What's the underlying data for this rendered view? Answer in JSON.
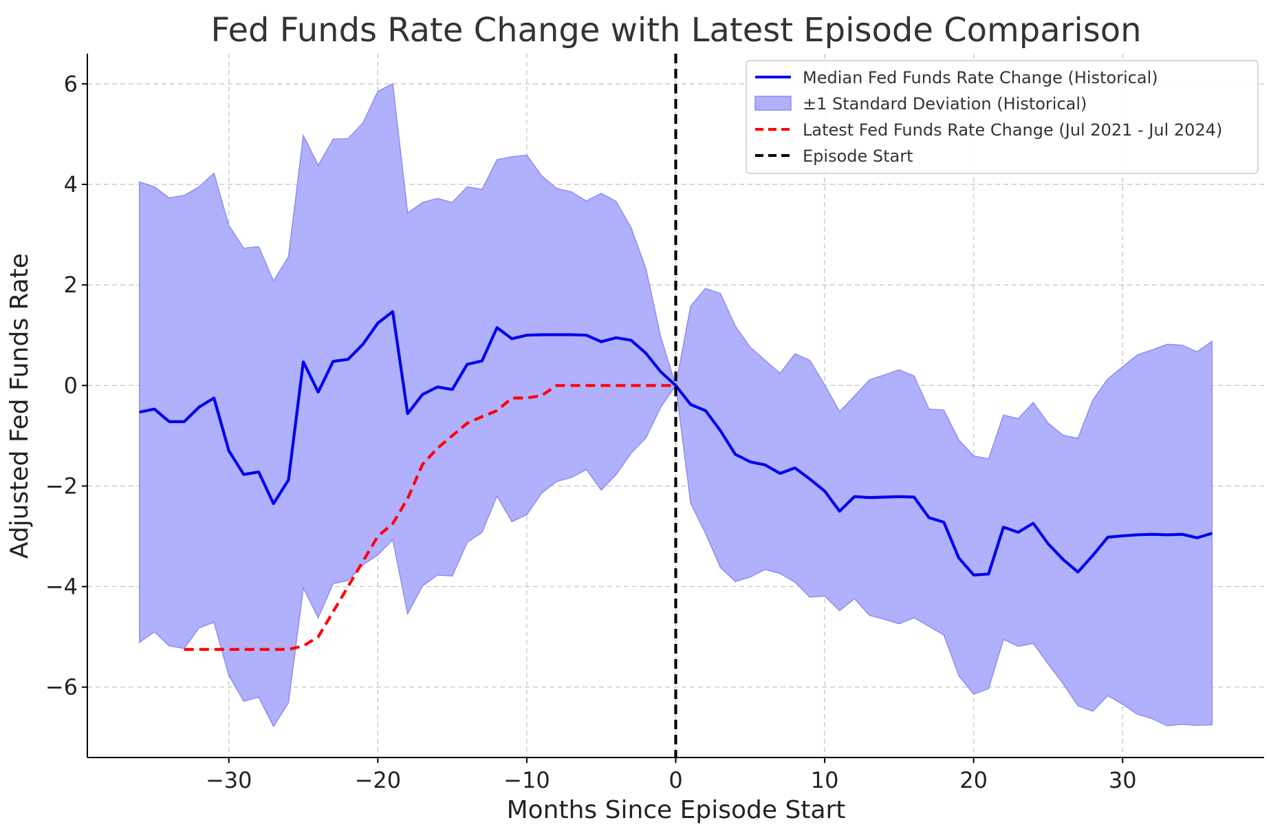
{
  "chart_data": {
    "type": "line",
    "title": "Fed Funds Rate Change with Latest Episode Comparison",
    "xlabel": "Months Since Episode Start",
    "ylabel": "Adjusted Fed Funds Rate",
    "xlim": [
      -39.5,
      39.5
    ],
    "ylim": [
      -7.4,
      6.6
    ],
    "xticks": [
      -30,
      -20,
      -10,
      0,
      10,
      20,
      30
    ],
    "xtick_labels": [
      "−30",
      "−20",
      "−10",
      "0",
      "10",
      "20",
      "30"
    ],
    "yticks": [
      -6,
      -4,
      -2,
      0,
      2,
      4,
      6
    ],
    "ytick_labels": [
      "−6",
      "−4",
      "−2",
      "0",
      "2",
      "4",
      "6"
    ],
    "grid": true,
    "legend_position": "top-right",
    "colors": {
      "median": "#0000ee",
      "band": "#b0b0fc",
      "band_edge": "#8c8cf2",
      "latest": "#ff0000",
      "episode_start": "#000000"
    },
    "series": [
      {
        "name": "Median Fed Funds Rate Change (Historical)",
        "style": "solid",
        "x": [
          -36,
          -35,
          -34,
          -33,
          -32,
          -31,
          -30,
          -29,
          -28,
          -27,
          -26,
          -25,
          -24,
          -23,
          -22,
          -21,
          -20,
          -19,
          -18,
          -17,
          -16,
          -15,
          -14,
          -13,
          -12,
          -11,
          -10,
          -9,
          -8,
          -7,
          -6,
          -5,
          -4,
          -3,
          -2,
          -1,
          0,
          1,
          2,
          3,
          4,
          5,
          6,
          7,
          8,
          9,
          10,
          11,
          12,
          13,
          14,
          15,
          16,
          17,
          18,
          19,
          20,
          21,
          22,
          23,
          24,
          25,
          26,
          27,
          28,
          29,
          30,
          31,
          32,
          33,
          34,
          35,
          36
        ],
        "y": [
          -0.53,
          -0.47,
          -0.72,
          -0.72,
          -0.43,
          -0.25,
          -1.3,
          -1.77,
          -1.72,
          -2.35,
          -1.88,
          0.47,
          -0.13,
          0.48,
          0.52,
          0.82,
          1.24,
          1.47,
          -0.56,
          -0.18,
          -0.03,
          -0.08,
          0.42,
          0.49,
          1.15,
          0.93,
          1.0,
          1.01,
          1.01,
          1.01,
          1.0,
          0.87,
          0.95,
          0.9,
          0.64,
          0.27,
          0.0,
          -0.38,
          -0.5,
          -0.9,
          -1.37,
          -1.52,
          -1.58,
          -1.75,
          -1.64,
          -1.86,
          -2.1,
          -2.5,
          -2.21,
          -2.23,
          -2.22,
          -2.21,
          -2.22,
          -2.63,
          -2.72,
          -3.43,
          -3.77,
          -3.75,
          -2.82,
          -2.92,
          -2.74,
          -3.15,
          -3.46,
          -3.71,
          -3.38,
          -3.02,
          -2.99,
          -2.97,
          -2.96,
          -2.97,
          -2.96,
          -3.03,
          -2.94
        ]
      },
      {
        "name": "±1 Standard Deviation (Historical)",
        "style": "band",
        "x": [
          -36,
          -35,
          -34,
          -33,
          -32,
          -31,
          -30,
          -29,
          -28,
          -27,
          -26,
          -25,
          -24,
          -23,
          -22,
          -21,
          -20,
          -19,
          -18,
          -17,
          -16,
          -15,
          -14,
          -13,
          -12,
          -11,
          -10,
          -9,
          -8,
          -7,
          -6,
          -5,
          -4,
          -3,
          -2,
          -1,
          0,
          1,
          2,
          3,
          4,
          5,
          6,
          7,
          8,
          9,
          10,
          11,
          12,
          13,
          14,
          15,
          16,
          17,
          18,
          19,
          20,
          21,
          22,
          23,
          24,
          25,
          26,
          27,
          28,
          29,
          30,
          31,
          32,
          33,
          34,
          35,
          36
        ],
        "upper": [
          4.05,
          3.95,
          3.73,
          3.78,
          3.95,
          4.22,
          3.18,
          2.73,
          2.76,
          2.08,
          2.56,
          4.97,
          4.38,
          4.9,
          4.91,
          5.22,
          5.85,
          6.0,
          3.43,
          3.64,
          3.72,
          3.64,
          3.95,
          3.9,
          4.49,
          4.55,
          4.58,
          4.17,
          3.92,
          3.85,
          3.67,
          3.82,
          3.66,
          3.14,
          2.32,
          0.96,
          0.0,
          1.58,
          1.93,
          1.83,
          1.18,
          0.76,
          0.5,
          0.24,
          0.63,
          0.5,
          0.01,
          -0.52,
          -0.21,
          0.11,
          0.21,
          0.31,
          0.19,
          -0.47,
          -0.49,
          -1.08,
          -1.4,
          -1.46,
          -0.59,
          -0.66,
          -0.34,
          -0.75,
          -0.99,
          -1.05,
          -0.29,
          0.13,
          0.37,
          0.61,
          0.71,
          0.82,
          0.8,
          0.67,
          0.88
        ],
        "lower": [
          -5.11,
          -4.9,
          -5.18,
          -5.23,
          -4.82,
          -4.71,
          -5.77,
          -6.28,
          -6.2,
          -6.78,
          -6.31,
          -4.03,
          -4.62,
          -3.94,
          -3.88,
          -3.57,
          -3.37,
          -3.07,
          -4.54,
          -3.99,
          -3.77,
          -3.79,
          -3.12,
          -2.92,
          -2.2,
          -2.71,
          -2.57,
          -2.14,
          -1.91,
          -1.83,
          -1.67,
          -2.08,
          -1.77,
          -1.35,
          -1.04,
          -0.43,
          0.0,
          -2.34,
          -2.94,
          -3.62,
          -3.9,
          -3.81,
          -3.66,
          -3.74,
          -3.91,
          -4.21,
          -4.19,
          -4.48,
          -4.24,
          -4.57,
          -4.65,
          -4.74,
          -4.62,
          -4.79,
          -4.96,
          -5.77,
          -6.14,
          -6.03,
          -5.05,
          -5.19,
          -5.13,
          -5.54,
          -5.93,
          -6.37,
          -6.48,
          -6.17,
          -6.34,
          -6.54,
          -6.63,
          -6.77,
          -6.74,
          -6.76,
          -6.75
        ]
      },
      {
        "name": "Latest Fed Funds Rate Change (Jul 2021 - Jul 2024)",
        "style": "dashed",
        "x": [
          -33,
          -32,
          -31,
          -30,
          -29,
          -28,
          -27,
          -26,
          -25,
          -24,
          -23,
          -22,
          -21,
          -20,
          -19,
          -18,
          -17,
          -16,
          -15,
          -14,
          -13,
          -12,
          -11,
          -10,
          -9,
          -8,
          -7,
          -6,
          -5,
          -4,
          -3,
          -2,
          -1,
          0
        ],
        "y": [
          -5.25,
          -5.25,
          -5.25,
          -5.25,
          -5.25,
          -5.25,
          -5.25,
          -5.25,
          -5.18,
          -5.0,
          -4.5,
          -4.0,
          -3.5,
          -3.0,
          -2.75,
          -2.25,
          -1.57,
          -1.25,
          -1.0,
          -0.75,
          -0.62,
          -0.5,
          -0.25,
          -0.25,
          -0.2,
          0.0,
          0.0,
          0.0,
          0.0,
          0.0,
          0.0,
          0.0,
          0.0,
          0.0
        ]
      },
      {
        "name": "Episode Start",
        "style": "dashed",
        "vline_x": 0
      }
    ]
  }
}
